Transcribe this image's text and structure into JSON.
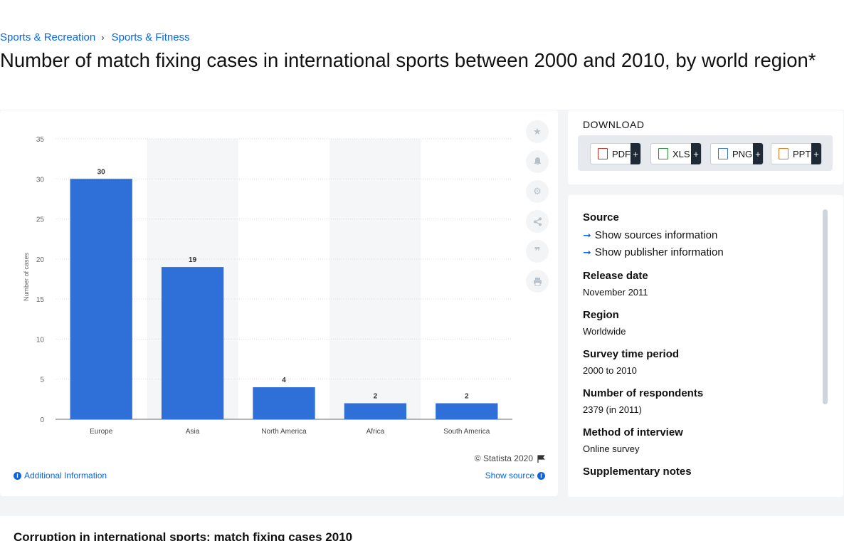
{
  "breadcrumb": {
    "item1": "Sports & Recreation",
    "item2": "Sports & Fitness"
  },
  "page_title": "Number of match fixing cases in international sports between 2000 and 2010, by world region*",
  "chart_data": {
    "type": "bar",
    "categories": [
      "Europe",
      "Asia",
      "North America",
      "Africa",
      "South America"
    ],
    "values": [
      30,
      19,
      4,
      2,
      2
    ],
    "title": "",
    "xlabel": "",
    "ylabel": "Number of cases",
    "ylim": [
      0,
      35
    ],
    "yticks": [
      0,
      5,
      10,
      15,
      20,
      25,
      30,
      35
    ],
    "grid": true,
    "bar_color": "#2f6fd8",
    "data_labels": [
      "30",
      "19",
      "4",
      "2",
      "2"
    ],
    "colors": {
      "bar": "#2f6fd8",
      "band": "#f5f6f8",
      "grid": "#d9dde2"
    }
  },
  "chart_footer": {
    "credit": "© Statista 2020",
    "additional_info": "Additional Information",
    "show_source": "Show source"
  },
  "tools": [
    "star-icon",
    "bell-icon",
    "gear-icon",
    "share-icon",
    "quote-icon",
    "print-icon"
  ],
  "download": {
    "title": "DOWNLOAD",
    "buttons": [
      {
        "label": "PDF",
        "plus": "+"
      },
      {
        "label": "XLS",
        "plus": "+"
      },
      {
        "label": "PNG",
        "plus": "+"
      },
      {
        "label": "PPT",
        "plus": "+"
      }
    ]
  },
  "source_panel": {
    "source_h": "Source",
    "show_sources": "Show sources information",
    "show_publisher": "Show publisher information",
    "release_h": "Release date",
    "release_v": "November 2011",
    "region_h": "Region",
    "region_v": "Worldwide",
    "period_h": "Survey time period",
    "period_v": "2000 to 2010",
    "respondents_h": "Number of respondents",
    "respondents_v": "2379 (in 2011)",
    "method_h": "Method of interview",
    "method_v": "Online survey",
    "supp_h": "Supplementary notes"
  },
  "bottom": {
    "title": "Corruption in international sports: match fixing cases 2010"
  }
}
